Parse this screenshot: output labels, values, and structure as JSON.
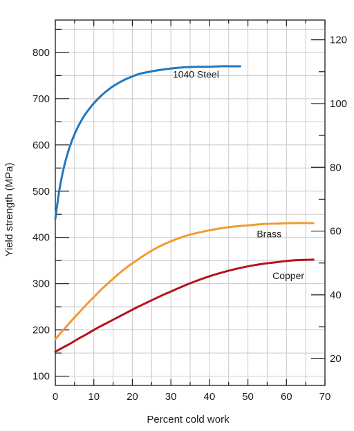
{
  "chart_data": {
    "type": "line",
    "title": "",
    "xlabel": "Percent cold work",
    "ylabel": "Yield strength (MPa)",
    "y2label": "",
    "xlim": [
      0,
      70
    ],
    "ylim": [
      80,
      870
    ],
    "y2lim": [
      11.6,
      126.2
    ],
    "grid": true,
    "x_ticks": [
      0,
      10,
      20,
      30,
      40,
      50,
      60,
      70
    ],
    "y_ticks": [
      100,
      200,
      300,
      400,
      500,
      600,
      700,
      800
    ],
    "y2_ticks": [
      20,
      40,
      60,
      80,
      100,
      120
    ],
    "series": [
      {
        "name": "1040 Steel",
        "color": "#1f78c1",
        "x": [
          0,
          1,
          2,
          3,
          4,
          5,
          6,
          7,
          8,
          10,
          12,
          14,
          16,
          18,
          20,
          22,
          25,
          28,
          31,
          34,
          37,
          40,
          43,
          46,
          48
        ],
        "y": [
          440,
          500,
          543,
          576,
          602,
          623,
          641,
          656,
          669,
          690,
          707,
          721,
          732,
          741,
          748,
          754,
          759,
          763,
          766,
          768,
          769,
          769,
          770,
          770,
          770
        ]
      },
      {
        "name": "Brass",
        "color": "#f29a2e",
        "x": [
          0,
          2,
          4,
          6,
          8,
          10,
          12,
          14,
          16,
          18,
          20,
          23,
          26,
          29,
          32,
          35,
          38,
          41,
          44,
          47,
          50,
          54,
          58,
          62,
          67
        ],
        "y": [
          180,
          199,
          218,
          236,
          254,
          271,
          288,
          303,
          318,
          332,
          344,
          361,
          376,
          388,
          398,
          406,
          412,
          417,
          421,
          424,
          426,
          429,
          430,
          431,
          431
        ]
      },
      {
        "name": "Copper",
        "color": "#b5121b",
        "x": [
          0,
          2,
          4,
          6,
          8,
          10,
          12,
          15,
          18,
          21,
          24,
          27,
          30,
          33,
          36,
          39,
          42,
          45,
          48,
          51,
          54,
          57,
          60,
          63,
          67
        ],
        "y": [
          153,
          162,
          171,
          181,
          190,
          200,
          209,
          222,
          235,
          248,
          260,
          272,
          283,
          294,
          304,
          313,
          321,
          328,
          334,
          339,
          343,
          346,
          349,
          351,
          352
        ]
      }
    ]
  }
}
